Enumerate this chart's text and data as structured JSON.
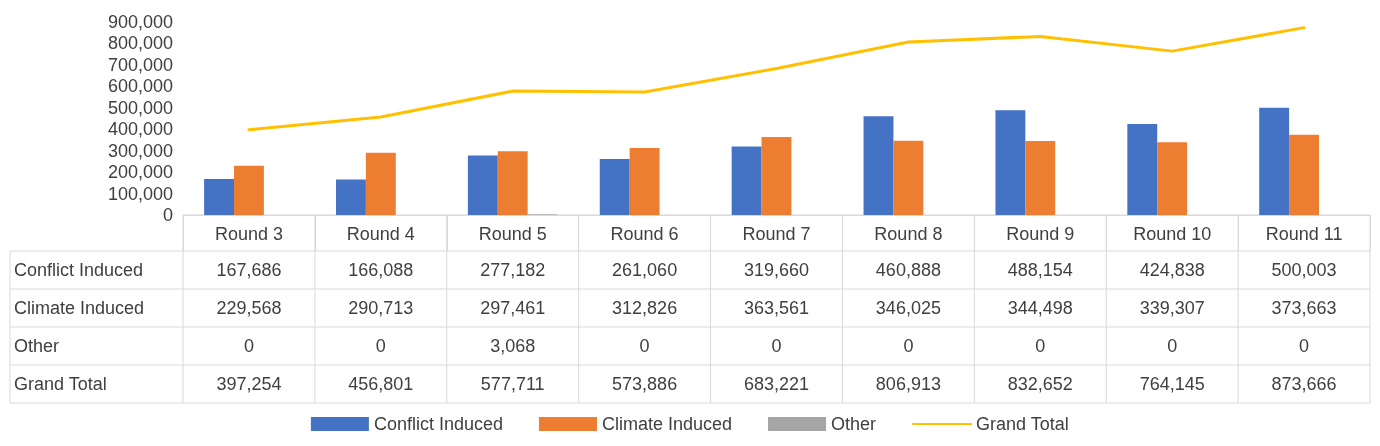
{
  "chart_data": {
    "type": "bar",
    "categories": [
      "Round 3",
      "Round 4",
      "Round 5",
      "Round 6",
      "Round 7",
      "Round 8",
      "Round 9",
      "Round 10",
      "Round 11"
    ],
    "series": [
      {
        "name": "Conflict Induced",
        "color": "#4472c4",
        "values": [
          167686,
          166088,
          277182,
          261060,
          319660,
          460888,
          488154,
          424838,
          500003
        ],
        "value_labels": [
          "167,686",
          "166,088",
          "277,182",
          "261,060",
          "319,660",
          "460,888",
          "488,154",
          "424,838",
          "500,003"
        ]
      },
      {
        "name": "Climate Induced",
        "color": "#ed7d31",
        "values": [
          229568,
          290713,
          297461,
          312826,
          363561,
          346025,
          344498,
          339307,
          373663
        ],
        "value_labels": [
          "229,568",
          "290,713",
          "297,461",
          "312,826",
          "363,561",
          "346,025",
          "344,498",
          "339,307",
          "373,663"
        ]
      },
      {
        "name": "Other",
        "color": "#a5a5a5",
        "values": [
          0,
          0,
          3068,
          0,
          0,
          0,
          0,
          0,
          0
        ],
        "value_labels": [
          "0",
          "0",
          "3,068",
          "0",
          "0",
          "0",
          "0",
          "0",
          "0"
        ]
      },
      {
        "name": "Grand Total",
        "type": "line",
        "color": "#ffc000",
        "values": [
          397254,
          456801,
          577711,
          573886,
          683221,
          806913,
          832652,
          764145,
          873666
        ],
        "value_labels": [
          "397,254",
          "456,801",
          "577,711",
          "573,886",
          "683,221",
          "806,913",
          "832,652",
          "764,145",
          "873,666"
        ]
      }
    ],
    "ylim": [
      0,
      900000
    ],
    "yticks": [
      0,
      {
        "value": 100000,
        "label": "100,000"
      },
      {
        "value": 200000,
        "label": "200,000"
      },
      {
        "value": 300000,
        "label": "300,000"
      },
      {
        "value": 400000,
        "label": "400,000"
      },
      {
        "value": 500000,
        "label": "500,000"
      },
      {
        "value": 600000,
        "label": "600,000"
      },
      {
        "value": 700000,
        "label": "700,000"
      },
      {
        "value": 800000,
        "label": "800,000"
      },
      {
        "value": 900000,
        "label": "900,000"
      }
    ],
    "grid": false,
    "legend": "bottom",
    "marker": "none",
    "line_style": "solid"
  }
}
